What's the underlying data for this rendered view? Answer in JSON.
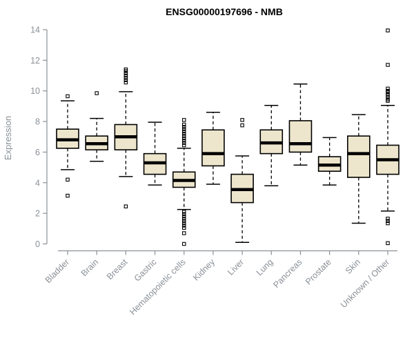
{
  "title": "ENSG00000197696 - NMB",
  "chart_data": {
    "type": "boxplot",
    "title": "ENSG00000197696 - NMB",
    "xlabel": "",
    "ylabel": "Expression",
    "ylim": [
      0,
      14
    ],
    "yticks": [
      0,
      2,
      4,
      6,
      8,
      10,
      12,
      14
    ],
    "grid": false,
    "legend": "none",
    "categories": [
      "Bladder",
      "Brain",
      "Breast",
      "Gastric",
      "Hematopoietic cells",
      "Kidney",
      "Liver",
      "Lung",
      "Pancreas",
      "Prostate",
      "Skin",
      "Unknown / Other"
    ],
    "boxes": [
      {
        "category": "Bladder",
        "whisker_low": 4.85,
        "q1": 6.25,
        "median": 6.8,
        "q3": 7.5,
        "whisker_high": 9.35,
        "outliers": [
          9.65,
          4.2,
          3.15
        ]
      },
      {
        "category": "Brain",
        "whisker_low": 5.4,
        "q1": 6.15,
        "median": 6.55,
        "q3": 7.05,
        "whisker_high": 8.2,
        "outliers": [
          9.85
        ]
      },
      {
        "category": "Breast",
        "whisker_low": 4.4,
        "q1": 6.15,
        "median": 7.0,
        "q3": 7.8,
        "whisker_high": 9.95,
        "outliers": [
          11.4,
          11.3,
          11.15,
          11.0,
          10.85,
          10.7,
          10.55,
          2.45
        ]
      },
      {
        "category": "Gastric",
        "whisker_low": 3.85,
        "q1": 4.55,
        "median": 5.3,
        "q3": 5.9,
        "whisker_high": 7.95,
        "outliers": []
      },
      {
        "category": "Hematopoietic cells",
        "whisker_low": 2.25,
        "q1": 3.7,
        "median": 4.15,
        "q3": 4.7,
        "whisker_high": 6.25,
        "outliers": [
          8.1,
          7.8,
          7.65,
          7.5,
          7.35,
          7.2,
          7.05,
          6.9,
          6.75,
          6.6,
          6.45,
          2.1,
          1.95,
          1.8,
          1.65,
          1.5,
          1.35,
          1.2,
          1.05,
          0.7,
          0.0
        ]
      },
      {
        "category": "Kidney",
        "whisker_low": 3.9,
        "q1": 5.1,
        "median": 5.9,
        "q3": 7.45,
        "whisker_high": 8.6,
        "outliers": []
      },
      {
        "category": "Liver",
        "whisker_low": 0.1,
        "q1": 2.7,
        "median": 3.55,
        "q3": 4.55,
        "whisker_high": 5.75,
        "outliers": [
          8.1,
          7.75
        ]
      },
      {
        "category": "Lung",
        "whisker_low": 3.8,
        "q1": 5.9,
        "median": 6.6,
        "q3": 7.45,
        "whisker_high": 9.05,
        "outliers": []
      },
      {
        "category": "Pancreas",
        "whisker_low": 5.15,
        "q1": 6.0,
        "median": 6.55,
        "q3": 8.05,
        "whisker_high": 10.45,
        "outliers": []
      },
      {
        "category": "Prostate",
        "whisker_low": 3.85,
        "q1": 4.75,
        "median": 5.15,
        "q3": 5.7,
        "whisker_high": 6.95,
        "outliers": []
      },
      {
        "category": "Skin",
        "whisker_low": 1.35,
        "q1": 4.35,
        "median": 5.9,
        "q3": 7.05,
        "whisker_high": 8.45,
        "outliers": []
      },
      {
        "category": "Unknown / Other",
        "whisker_low": 2.15,
        "q1": 4.55,
        "median": 5.5,
        "q3": 6.45,
        "whisker_high": 9.05,
        "outliers": [
          13.95,
          11.7,
          10.15,
          10.0,
          9.9,
          9.75,
          9.6,
          9.45,
          9.35,
          1.65,
          1.5,
          1.35,
          0.05
        ]
      }
    ],
    "colors": {
      "box_fill": "#EDE6CD",
      "box_stroke": "#000000",
      "median": "#000000",
      "whisker": "#000000",
      "outlier": "#000000",
      "axis": "#8a9096",
      "tick_label": "#8a9096",
      "title": "#000000"
    }
  }
}
